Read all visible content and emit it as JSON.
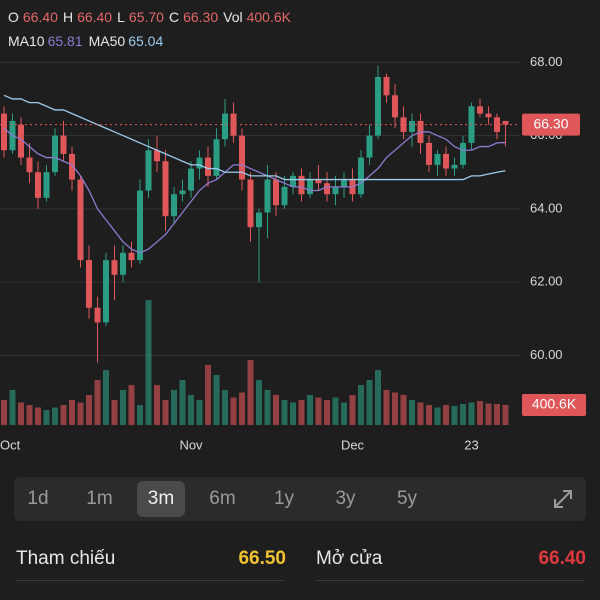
{
  "chart_data": {
    "type": "candlestick",
    "legend": [
      {
        "key": "O",
        "value": 66.4,
        "label": "66.40"
      },
      {
        "key": "H",
        "value": 66.4,
        "label": "66.40"
      },
      {
        "key": "L",
        "value": 65.7,
        "label": "65.70"
      },
      {
        "key": "C",
        "value": 66.3,
        "label": "66.30"
      },
      {
        "key": "Vol",
        "value": 400.6,
        "label": "400.6K"
      }
    ],
    "ma_legend": [
      {
        "name": "MA10",
        "value": 65.81,
        "color": "#8d7ad1"
      },
      {
        "name": "MA50",
        "value": 65.04,
        "color": "#9dcbec"
      }
    ],
    "categories": [
      "Oct",
      null,
      null,
      null,
      null,
      null,
      null,
      null,
      null,
      null,
      null,
      null,
      null,
      null,
      null,
      null,
      null,
      null,
      null,
      null,
      null,
      null,
      "Nov",
      null,
      null,
      null,
      null,
      null,
      null,
      null,
      null,
      null,
      null,
      null,
      null,
      null,
      null,
      null,
      null,
      null,
      null,
      "Dec",
      null,
      null,
      null,
      null,
      null,
      null,
      null,
      null,
      null,
      null,
      null,
      null,
      null,
      "23",
      null,
      null,
      null,
      null
    ],
    "open": [
      66.6,
      65.6,
      66.3,
      65.4,
      65.0,
      64.3,
      65.0,
      66.0,
      65.5,
      64.8,
      62.6,
      61.3,
      60.9,
      62.6,
      62.2,
      62.8,
      62.6,
      64.5,
      65.6,
      65.3,
      63.8,
      64.4,
      64.5,
      65.1,
      65.4,
      64.9,
      65.9,
      66.6,
      66.0,
      64.8,
      63.5,
      63.9,
      64.8,
      64.1,
      64.6,
      64.9,
      64.4,
      64.8,
      64.7,
      64.4,
      64.6,
      64.8,
      64.4,
      65.4,
      66.0,
      67.6,
      67.1,
      66.5,
      66.1,
      66.4,
      65.8,
      65.2,
      65.5,
      65.1,
      65.2,
      65.8,
      66.8,
      66.6,
      66.5,
      66.4
    ],
    "high": [
      66.8,
      66.6,
      66.5,
      65.8,
      65.3,
      65.2,
      66.2,
      66.4,
      65.7,
      64.9,
      63.0,
      61.6,
      62.8,
      63.0,
      63.0,
      63.1,
      64.8,
      65.9,
      66.0,
      65.6,
      64.6,
      64.8,
      65.3,
      65.6,
      65.7,
      66.2,
      67.0,
      66.9,
      66.2,
      65.0,
      64.0,
      65.2,
      65.0,
      64.9,
      65.0,
      65.1,
      65.0,
      65.2,
      65.0,
      64.9,
      65.0,
      65.1,
      65.6,
      66.3,
      67.9,
      67.7,
      67.4,
      66.8,
      66.6,
      66.6,
      66.0,
      65.6,
      65.7,
      65.4,
      66.0,
      66.9,
      67.0,
      66.8,
      66.6,
      66.4
    ],
    "low": [
      65.4,
      65.5,
      65.2,
      64.7,
      64.0,
      64.2,
      64.9,
      65.3,
      64.5,
      62.4,
      61.0,
      59.8,
      60.8,
      61.5,
      62.0,
      62.4,
      62.5,
      64.3,
      65.0,
      63.4,
      63.6,
      64.2,
      64.3,
      64.8,
      64.6,
      64.8,
      65.7,
      65.8,
      64.5,
      63.1,
      62.0,
      63.2,
      63.8,
      64.0,
      64.4,
      64.2,
      64.3,
      64.5,
      64.2,
      64.1,
      64.3,
      64.2,
      64.3,
      65.2,
      65.9,
      66.9,
      66.2,
      65.9,
      65.7,
      65.5,
      65.0,
      64.9,
      64.9,
      64.9,
      65.1,
      65.6,
      66.5,
      66.3,
      65.9,
      65.7
    ],
    "close": [
      65.6,
      66.4,
      65.4,
      65.0,
      64.3,
      65.0,
      66.0,
      65.5,
      64.8,
      62.6,
      61.3,
      60.9,
      62.6,
      62.2,
      62.8,
      62.6,
      64.5,
      65.6,
      65.3,
      63.8,
      64.4,
      64.5,
      65.1,
      65.4,
      64.9,
      65.9,
      66.6,
      66.0,
      64.8,
      63.5,
      63.9,
      64.8,
      64.1,
      64.6,
      64.9,
      64.4,
      64.8,
      64.7,
      64.4,
      64.6,
      64.8,
      64.4,
      65.4,
      66.0,
      67.6,
      67.1,
      66.5,
      66.1,
      66.4,
      65.8,
      65.2,
      65.5,
      65.1,
      65.2,
      65.8,
      66.8,
      66.6,
      66.5,
      66.1,
      66.3
    ],
    "volume": [
      500,
      700,
      450,
      400,
      350,
      300,
      350,
      400,
      500,
      450,
      600,
      900,
      1100,
      500,
      700,
      800,
      400,
      2500,
      800,
      500,
      700,
      900,
      600,
      500,
      1200,
      1000,
      700,
      550,
      650,
      1300,
      900,
      700,
      600,
      500,
      450,
      500,
      600,
      550,
      500,
      550,
      450,
      600,
      800,
      900,
      1100,
      700,
      650,
      600,
      500,
      450,
      400,
      350,
      400,
      380,
      420,
      450,
      480,
      430,
      420,
      400.6
    ],
    "ma10": [
      66.2,
      66.0,
      65.9,
      65.7,
      65.5,
      65.4,
      65.4,
      65.3,
      65.2,
      64.9,
      64.5,
      64.0,
      63.7,
      63.4,
      63.1,
      62.9,
      62.8,
      62.9,
      63.1,
      63.3,
      63.6,
      63.9,
      64.2,
      64.5,
      64.7,
      64.8,
      65.0,
      65.2,
      65.2,
      65.1,
      65.0,
      64.9,
      64.8,
      64.7,
      64.6,
      64.6,
      64.5,
      64.5,
      64.6,
      64.6,
      64.6,
      64.6,
      64.7,
      64.9,
      65.1,
      65.4,
      65.6,
      65.8,
      66.0,
      66.1,
      66.1,
      66.0,
      65.9,
      65.7,
      65.6,
      65.6,
      65.7,
      65.7,
      65.8,
      65.81
    ],
    "ma50": [
      67.1,
      67.0,
      67.0,
      66.9,
      66.9,
      66.8,
      66.7,
      66.7,
      66.6,
      66.5,
      66.4,
      66.3,
      66.2,
      66.1,
      66.0,
      65.9,
      65.8,
      65.7,
      65.6,
      65.5,
      65.4,
      65.3,
      65.2,
      65.2,
      65.1,
      65.1,
      65.0,
      65.0,
      65.0,
      64.9,
      64.9,
      64.9,
      64.9,
      64.8,
      64.8,
      64.8,
      64.8,
      64.8,
      64.8,
      64.8,
      64.8,
      64.8,
      64.8,
      64.8,
      64.8,
      64.8,
      64.8,
      64.8,
      64.8,
      64.8,
      64.8,
      64.8,
      64.8,
      64.8,
      64.8,
      64.9,
      64.9,
      64.95,
      65.0,
      65.04
    ],
    "up_color": "#2a9d84",
    "down_color": "#e0575a",
    "ylim": [
      59,
      68.2
    ],
    "yticks": [
      {
        "value": 60,
        "label": "60.00"
      },
      {
        "value": 62,
        "label": "62.00"
      },
      {
        "value": 64,
        "label": "64.00"
      },
      {
        "value": 66,
        "label": "66.00"
      },
      {
        "value": 68,
        "label": "68.00"
      }
    ],
    "volume_lim": [
      0,
      2500
    ],
    "last_price": {
      "value": 66.3,
      "label": "66.30"
    },
    "last_volume": {
      "value": 400.6,
      "label": "400.6K"
    },
    "grid": true
  },
  "timeframes": [
    "1d",
    "1m",
    "3m",
    "6m",
    "1y",
    "3y",
    "5y"
  ],
  "selected_timeframe": 2,
  "stats": [
    {
      "label": "Tham chiếu",
      "value": "66.50",
      "color": "#f2c12e"
    },
    {
      "label": "Mở cửa",
      "value": "66.40",
      "color": "#e0393e"
    }
  ]
}
